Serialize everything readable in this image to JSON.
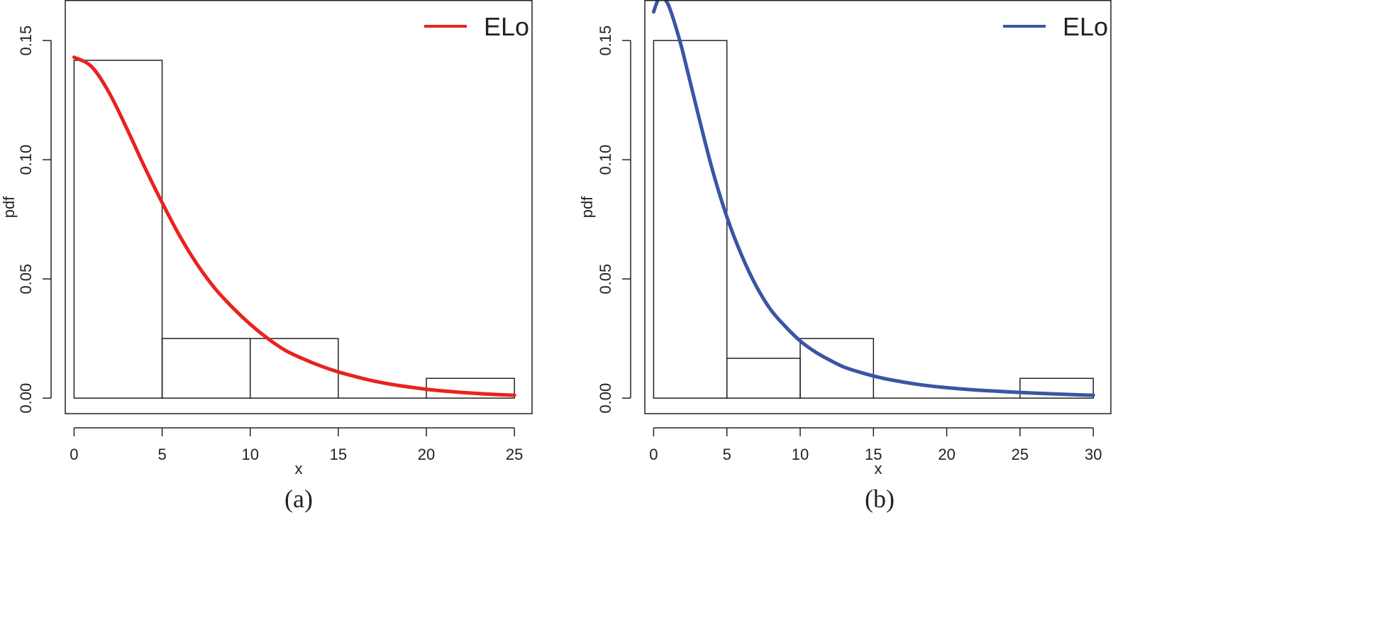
{
  "chart_data": [
    {
      "type": "histogram+line",
      "caption": "(a)",
      "xlabel": "x",
      "ylabel": "pdf",
      "xlim": [
        -0.5,
        26
      ],
      "ylim": [
        -0.0065,
        0.167
      ],
      "x_ticks": [
        0,
        5,
        10,
        15,
        20,
        25
      ],
      "x_tick_labels": [
        "0",
        "5",
        "10",
        "15",
        "20",
        "25"
      ],
      "y_ticks": [
        0.0,
        0.05,
        0.1,
        0.15
      ],
      "y_tick_labels": [
        "0.00",
        "0.05",
        "0.10",
        "0.15"
      ],
      "bins": [
        {
          "x0": 0,
          "x1": 5,
          "density": 0.1417
        },
        {
          "x0": 5,
          "x1": 10,
          "density": 0.025
        },
        {
          "x0": 10,
          "x1": 15,
          "density": 0.025
        },
        {
          "x0": 15,
          "x1": 20,
          "density": 0.0
        },
        {
          "x0": 20,
          "x1": 25,
          "density": 0.0083
        }
      ],
      "curve": {
        "name": "ELo",
        "color": "#e8231f",
        "x": [
          0,
          1,
          2,
          3,
          4,
          5,
          6,
          7,
          8,
          9,
          10,
          11,
          12,
          13,
          14,
          15,
          16,
          17,
          18,
          19,
          20,
          21,
          22,
          23,
          24,
          25
        ],
        "y": [
          0.143,
          0.139,
          0.128,
          0.113,
          0.097,
          0.082,
          0.068,
          0.056,
          0.046,
          0.038,
          0.031,
          0.025,
          0.02,
          0.0165,
          0.0135,
          0.011,
          0.009,
          0.0072,
          0.0058,
          0.0047,
          0.0037,
          0.003,
          0.0024,
          0.0019,
          0.0015,
          0.0012
        ]
      },
      "legend": {
        "label": "ELo",
        "position": "top-right"
      }
    },
    {
      "type": "histogram+line",
      "caption": "(b)",
      "xlabel": "x",
      "ylabel": "pdf",
      "xlim": [
        -0.6,
        31.2
      ],
      "ylim": [
        -0.0065,
        0.167
      ],
      "x_ticks": [
        0,
        5,
        10,
        15,
        20,
        25,
        30
      ],
      "x_tick_labels": [
        "0",
        "5",
        "10",
        "15",
        "20",
        "25",
        "30"
      ],
      "y_ticks": [
        0.0,
        0.05,
        0.1,
        0.15
      ],
      "y_tick_labels": [
        "0.00",
        "0.05",
        "0.10",
        "0.15"
      ],
      "bins": [
        {
          "x0": 0,
          "x1": 5,
          "density": 0.15
        },
        {
          "x0": 5,
          "x1": 10,
          "density": 0.0167
        },
        {
          "x0": 10,
          "x1": 15,
          "density": 0.025
        },
        {
          "x0": 15,
          "x1": 20,
          "density": 0.0
        },
        {
          "x0": 20,
          "x1": 25,
          "density": 0.0
        },
        {
          "x0": 25,
          "x1": 30,
          "density": 0.0083
        }
      ],
      "curve": {
        "name": "ELo",
        "color": "#3a55a4",
        "x": [
          0,
          0.3,
          0.6,
          1,
          1.5,
          2,
          3,
          4,
          5,
          6,
          7,
          8,
          9,
          10,
          11,
          12,
          13,
          14,
          15,
          16,
          18,
          20,
          22,
          25,
          28,
          30
        ],
        "y": [
          0.162,
          0.167,
          0.168,
          0.165,
          0.156,
          0.145,
          0.12,
          0.096,
          0.076,
          0.06,
          0.047,
          0.037,
          0.03,
          0.024,
          0.0195,
          0.016,
          0.013,
          0.011,
          0.0093,
          0.0079,
          0.0058,
          0.0044,
          0.0034,
          0.0024,
          0.0016,
          0.0012
        ]
      },
      "legend": {
        "label": "ELo",
        "position": "top-right"
      }
    }
  ]
}
